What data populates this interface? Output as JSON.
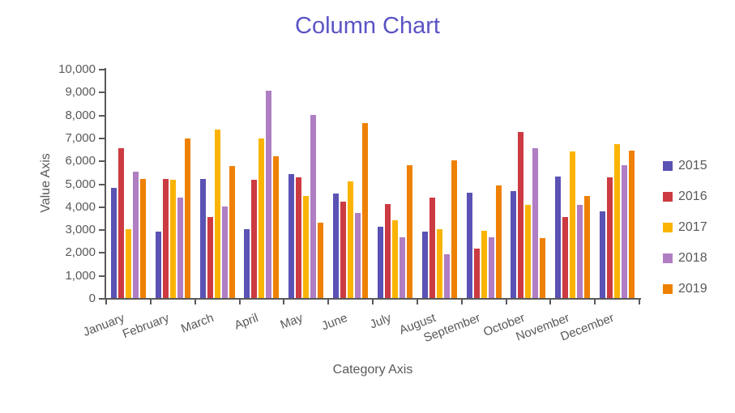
{
  "title_color": "#5B54C6",
  "axis_color": "#595959",
  "chart_data": {
    "type": "bar",
    "title": "Column Chart",
    "xlabel": "Category Axis",
    "ylabel": "Value Axis",
    "ylim": [
      0,
      10000
    ],
    "ytick_step": 1000,
    "ytick_labels": [
      "0",
      "1,000",
      "2,000",
      "3,000",
      "4,000",
      "5,000",
      "6,000",
      "7,000",
      "8,000",
      "9,000",
      "10,000"
    ],
    "grid": false,
    "legend_position": "right",
    "categories": [
      "January",
      "February",
      "March",
      "April",
      "May",
      "June",
      "July",
      "August",
      "September",
      "October",
      "November",
      "December"
    ],
    "series": [
      {
        "name": "2015",
        "color": "#5A52B4",
        "values": [
          4800,
          2900,
          5200,
          3000,
          5400,
          4550,
          3100,
          2900,
          4600,
          4650,
          5300,
          3800
        ]
      },
      {
        "name": "2016",
        "color": "#CC3B42",
        "values": [
          6550,
          5200,
          3550,
          5150,
          5250,
          4200,
          4100,
          4400,
          2150,
          7250,
          3550,
          5250
        ]
      },
      {
        "name": "2017",
        "color": "#FBB406",
        "values": [
          3000,
          5150,
          7350,
          6950,
          4450,
          5100,
          3400,
          3000,
          2950,
          4050,
          6400,
          6700
        ]
      },
      {
        "name": "2018",
        "color": "#AF7EC3",
        "values": [
          5500,
          4400,
          4000,
          9050,
          8000,
          3700,
          2650,
          1900,
          2650,
          6550,
          4050,
          5800
        ]
      },
      {
        "name": "2019",
        "color": "#EE8103",
        "values": [
          5200,
          6950,
          5750,
          6200,
          3300,
          7650,
          5800,
          6000,
          4900,
          2600,
          4450,
          6450
        ]
      }
    ]
  }
}
